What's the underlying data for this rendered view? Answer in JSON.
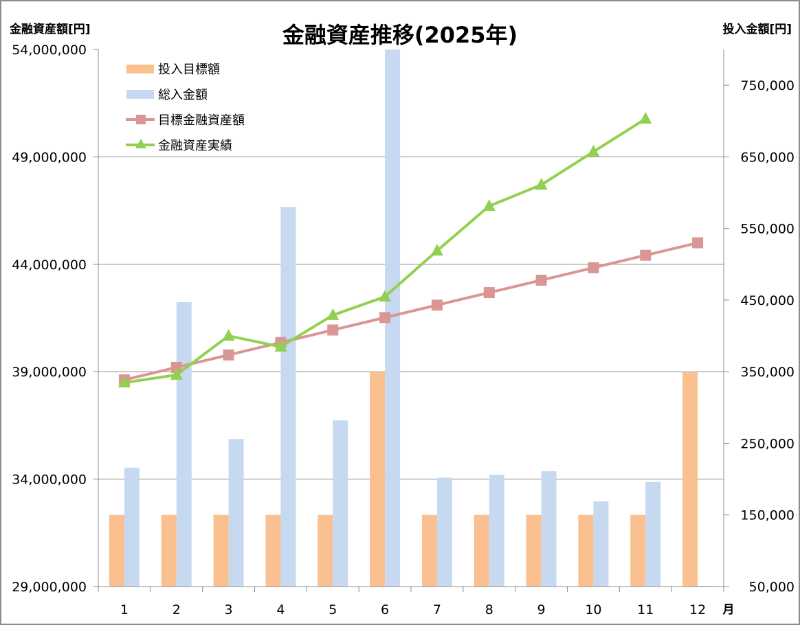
{
  "chart_data": {
    "type": "bar+line",
    "title": "金融資産推移(2025年)",
    "ylabel_left": "金融資産額[円]",
    "ylabel_right": "投入金額[円]",
    "xlabel": "月",
    "categories": [
      "1",
      "2",
      "3",
      "4",
      "5",
      "6",
      "7",
      "8",
      "9",
      "10",
      "11",
      "12"
    ],
    "ylim_left": [
      29000000,
      54000000
    ],
    "yticks_left": [
      "29,000,000",
      "34,000,000",
      "39,000,000",
      "44,000,000",
      "49,000,000",
      "54,000,000"
    ],
    "yticks_left_values": [
      29000000,
      34000000,
      39000000,
      44000000,
      49000000,
      54000000
    ],
    "ylim_right": [
      50000,
      800000
    ],
    "yticks_right": [
      "50,000",
      "150,000",
      "250,000",
      "350,000",
      "450,000",
      "550,000",
      "650,000",
      "750,000"
    ],
    "yticks_right_values": [
      50000,
      150000,
      250000,
      350000,
      450000,
      550000,
      650000,
      750000
    ],
    "grid": true,
    "legend_position": "top-left",
    "series": [
      {
        "name": "投入目標額",
        "kind": "bar",
        "axis": "right",
        "color": "#fac090",
        "values": [
          150000,
          150000,
          150000,
          150000,
          150000,
          350000,
          150000,
          150000,
          150000,
          150000,
          150000,
          350000
        ]
      },
      {
        "name": "総入金額",
        "kind": "bar",
        "axis": "right",
        "color": "#c6d9f1",
        "values": [
          216000,
          447000,
          256000,
          580000,
          282000,
          800000,
          202000,
          206000,
          211000,
          169000,
          196000,
          51000
        ]
      },
      {
        "name": "目標金融資産額",
        "kind": "line",
        "marker": "square",
        "axis": "left",
        "color": "#d99694",
        "values": [
          38620000,
          39200000,
          39780000,
          40360000,
          40940000,
          41520000,
          42100000,
          42680000,
          43260000,
          43840000,
          44420000,
          45000000
        ]
      },
      {
        "name": "金融資産実績",
        "kind": "line",
        "marker": "triangle",
        "axis": "left",
        "color": "#92d050",
        "values": [
          38490000,
          38850000,
          40670000,
          40160000,
          41630000,
          42490000,
          44630000,
          46710000,
          47700000,
          49240000,
          50770000,
          null
        ]
      }
    ]
  }
}
